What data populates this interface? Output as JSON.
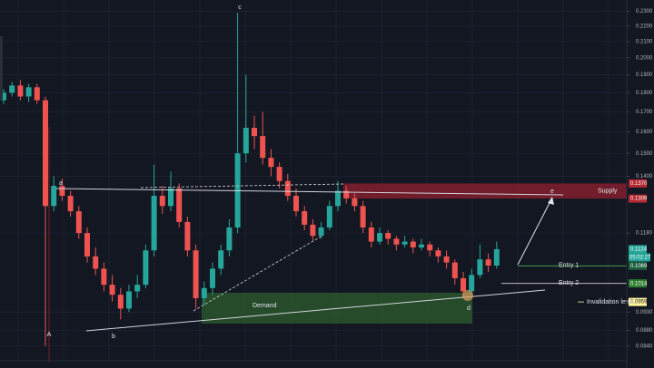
{
  "chart_data": {
    "type": "candlestick",
    "log_scale": true,
    "ylim": [
      0.081,
      0.238
    ],
    "yticks": [
      {
        "value": 0.23,
        "label": "0.2300"
      },
      {
        "value": 0.22,
        "label": "0.2200"
      },
      {
        "value": 0.21,
        "label": "0.2100"
      },
      {
        "value": 0.2,
        "label": "0.2000"
      },
      {
        "value": 0.19,
        "label": "0.1900"
      },
      {
        "value": 0.18,
        "label": "0.1800"
      },
      {
        "value": 0.17,
        "label": "0.1700"
      },
      {
        "value": 0.16,
        "label": "0.1600"
      },
      {
        "value": 0.15,
        "label": "0.1500"
      },
      {
        "value": 0.14,
        "label": "0.1400"
      },
      {
        "value": 0.118,
        "label": "0.1180"
      },
      {
        "value": 0.093,
        "label": "0.0930"
      },
      {
        "value": 0.088,
        "label": "0.0880"
      },
      {
        "value": 0.084,
        "label": "0.0840"
      }
    ],
    "grid": true,
    "up_color": "#26a69a",
    "down_color": "#ef5350",
    "open": [
      0.176,
      0.18,
      0.184,
      0.178,
      0.183,
      0.176,
      0.128,
      0.136,
      0.132,
      0.126,
      0.118,
      0.11,
      0.106,
      0.101,
      0.098,
      0.094,
      0.099,
      0.101,
      0.112,
      0.132,
      0.128,
      0.135,
      0.122,
      0.112,
      0.097,
      0.1,
      0.106,
      0.112,
      0.12,
      0.15,
      0.162,
      0.158,
      0.148,
      0.144,
      0.138,
      0.132,
      0.126,
      0.121,
      0.117,
      0.12,
      0.128,
      0.134,
      0.131,
      0.128,
      0.12,
      0.115,
      0.118,
      0.116,
      0.114,
      0.115,
      0.113,
      0.114,
      0.112,
      0.11,
      0.108,
      0.103,
      0.099,
      0.104,
      0.109,
      0.107
    ],
    "high": [
      0.182,
      0.186,
      0.187,
      0.185,
      0.185,
      0.178,
      0.14,
      0.139,
      0.134,
      0.128,
      0.12,
      0.113,
      0.108,
      0.104,
      0.1,
      0.101,
      0.104,
      0.114,
      0.145,
      0.136,
      0.142,
      0.137,
      0.124,
      0.114,
      0.102,
      0.108,
      0.114,
      0.123,
      0.229,
      0.19,
      0.168,
      0.17,
      0.152,
      0.146,
      0.141,
      0.135,
      0.128,
      0.123,
      0.122,
      0.13,
      0.138,
      0.136,
      0.133,
      0.13,
      0.122,
      0.12,
      0.119,
      0.117,
      0.117,
      0.116,
      0.116,
      0.115,
      0.113,
      0.112,
      0.109,
      0.105,
      0.106,
      0.114,
      0.111,
      0.115
    ],
    "low": [
      0.174,
      0.178,
      0.176,
      0.175,
      0.174,
      0.084,
      0.126,
      0.13,
      0.124,
      0.116,
      0.108,
      0.104,
      0.099,
      0.096,
      0.091,
      0.093,
      0.097,
      0.1,
      0.11,
      0.125,
      0.126,
      0.12,
      0.11,
      0.094,
      0.095,
      0.098,
      0.104,
      0.11,
      0.118,
      0.146,
      0.152,
      0.145,
      0.14,
      0.135,
      0.13,
      0.124,
      0.119,
      0.115,
      0.116,
      0.119,
      0.126,
      0.129,
      0.126,
      0.118,
      0.113,
      0.114,
      0.114,
      0.112,
      0.113,
      0.111,
      0.112,
      0.11,
      0.108,
      0.106,
      0.101,
      0.097,
      0.098,
      0.103,
      0.105,
      0.106
    ],
    "close": [
      0.18,
      0.184,
      0.178,
      0.183,
      0.176,
      0.128,
      0.136,
      0.132,
      0.126,
      0.118,
      0.11,
      0.106,
      0.101,
      0.098,
      0.094,
      0.099,
      0.101,
      0.112,
      0.132,
      0.128,
      0.135,
      0.122,
      0.112,
      0.097,
      0.1,
      0.106,
      0.112,
      0.12,
      0.15,
      0.162,
      0.158,
      0.148,
      0.144,
      0.138,
      0.132,
      0.126,
      0.121,
      0.117,
      0.12,
      0.128,
      0.134,
      0.131,
      0.128,
      0.12,
      0.115,
      0.118,
      0.116,
      0.114,
      0.115,
      0.113,
      0.114,
      0.112,
      0.11,
      0.108,
      0.103,
      0.099,
      0.104,
      0.109,
      0.107,
      0.1124
    ],
    "price_labels": [
      {
        "value": 0.137,
        "label": "0.1370",
        "color": "#b22833"
      },
      {
        "value": 0.1309,
        "label": "0.1309",
        "color": "#b22833"
      },
      {
        "value": 0.1124,
        "label": "0.1124",
        "color": "#26a69a"
      },
      {
        "value": 0.1069,
        "label": "0.1069",
        "color": "#1b5e3b"
      },
      {
        "value": 0.1014,
        "label": "0.1014",
        "color": "#2e7d32"
      },
      {
        "value": 0.0959,
        "label": "0.0959",
        "color": "#fff59d"
      }
    ],
    "countdown": "05:02:27",
    "annotations": [
      "A",
      "a",
      "b",
      "c",
      "d",
      "e",
      "Supply",
      "Demand",
      "Entry 1",
      "Entry 2",
      "Invalidation level"
    ]
  }
}
